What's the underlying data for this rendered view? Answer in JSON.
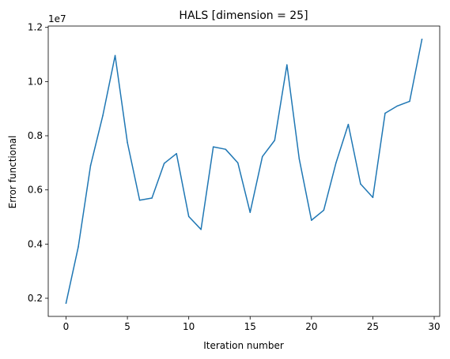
{
  "chart_data": {
    "type": "line",
    "title": "HALS [dimension = 25]",
    "xlabel": "Iteration number",
    "ylabel": "Error functional",
    "y_offset_label": "1e7",
    "xlim": [
      -1.45,
      30.45
    ],
    "ylim": [
      1330000,
      12050000
    ],
    "x_ticks": [
      0,
      5,
      10,
      15,
      20,
      25,
      30
    ],
    "x_tick_labels": [
      "0",
      "5",
      "10",
      "15",
      "20",
      "25",
      "30"
    ],
    "y_ticks": [
      2000000,
      4000000,
      6000000,
      8000000,
      10000000,
      12000000
    ],
    "y_tick_labels": [
      "0.2",
      "0.4",
      "0.6",
      "0.8",
      "1.0",
      "1.2"
    ],
    "grid": false,
    "series": [
      {
        "color": "#1f77b4",
        "x": [
          0,
          1,
          2,
          3,
          4,
          5,
          6,
          7,
          8,
          9,
          10,
          11,
          12,
          13,
          14,
          15,
          16,
          17,
          18,
          19,
          20,
          21,
          22,
          23,
          24,
          25,
          26,
          27,
          28,
          29
        ],
        "y": [
          1820000,
          3900000,
          6900000,
          8750000,
          10960000,
          7750000,
          5620000,
          5700000,
          6980000,
          7340000,
          5020000,
          4540000,
          7590000,
          7500000,
          7000000,
          5170000,
          7230000,
          7830000,
          10620000,
          7150000,
          4880000,
          5250000,
          7000000,
          8420000,
          6220000,
          5720000,
          8830000,
          9100000,
          9270000,
          11560000
        ]
      }
    ]
  }
}
